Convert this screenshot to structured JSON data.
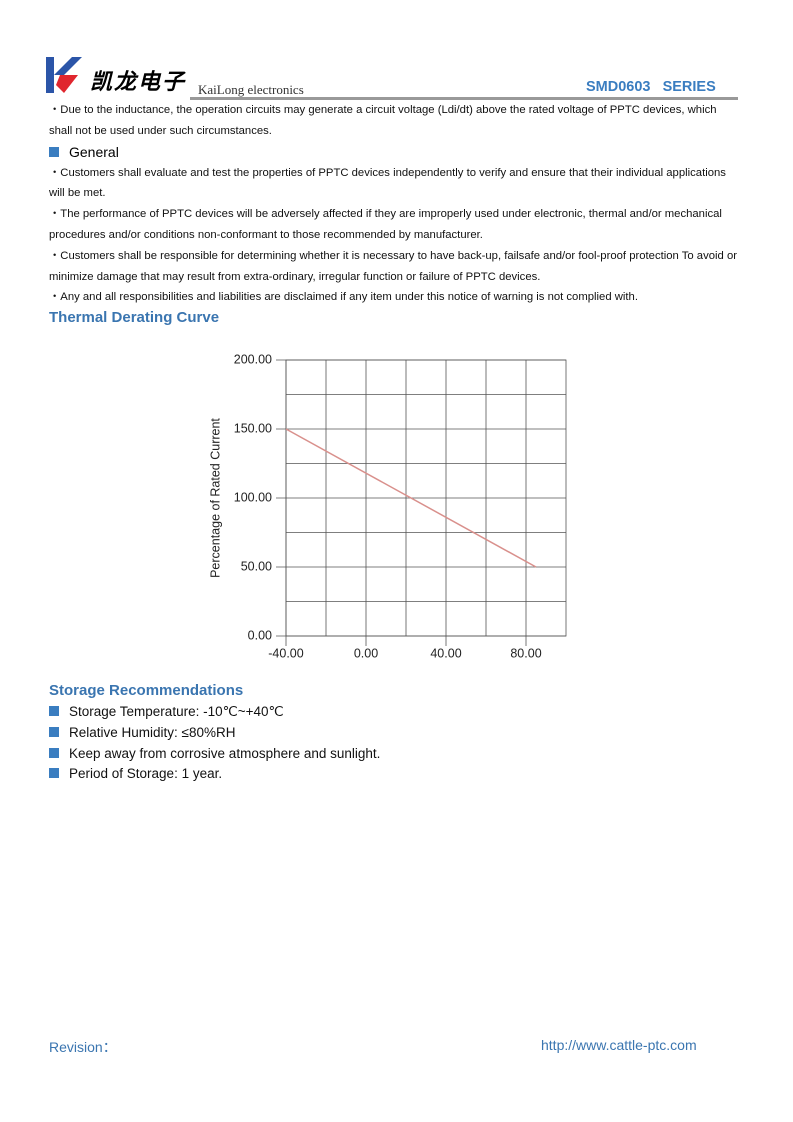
{
  "header": {
    "brand_cn": "凯龙电子",
    "brand_en": "KaiLong electronics",
    "series": "SMD0603   SERIES"
  },
  "notes": [
    "・Due to the inductance, the operation circuits may generate a circuit voltage (Ldi/dt) above the rated voltage of PPTC devices, which shall not be used under such circumstances."
  ],
  "general": {
    "heading": "General",
    "items": [
      "・Customers shall evaluate and test the properties of PPTC devices independently to verify and ensure that their individual applications will be met.",
      "・The performance of PPTC devices will be adversely affected if they are improperly used under electronic, thermal and/or mechanical procedures and/or conditions non-conformant to those recommended by manufacturer.",
      "・Customers shall be responsible for determining whether it is necessary to have back-up, failsafe and/or fool-proof protection To avoid or minimize damage that may result from extra-ordinary, irregular function or failure of PPTC devices.",
      "・Any and all responsibilities and liabilities are disclaimed if any item under this notice of warning is not complied with."
    ]
  },
  "thermal_heading": "Thermal Derating Curve",
  "chart_data": {
    "type": "line",
    "y_label": "Percentage of Rated Current",
    "x": [
      -40,
      85
    ],
    "series": [
      {
        "color": "#d9908c",
        "values": [
          150,
          50
        ]
      }
    ],
    "xlim": [
      -40,
      100
    ],
    "ylim": [
      0,
      200
    ],
    "xticks": [
      {
        "value": -40,
        "label": "-40.00"
      },
      {
        "value": 0,
        "label": "0.00"
      },
      {
        "value": 40,
        "label": "40.00"
      },
      {
        "value": 80,
        "label": "80.00"
      }
    ],
    "yticks": [
      {
        "value": 0,
        "label": "0.00"
      },
      {
        "value": 50,
        "label": "50.00"
      },
      {
        "value": 100,
        "label": "100.00"
      },
      {
        "value": 150,
        "label": "150.00"
      },
      {
        "value": 200,
        "label": "200.00"
      }
    ],
    "grid": true
  },
  "storage": {
    "heading": "Storage Recommendations",
    "items": [
      "Storage Temperature: -10℃~+40℃",
      "Relative Humidity: ≤80%RH",
      "Keep away from corrosive atmosphere and sunlight.",
      "Period of Storage: 1 year."
    ]
  },
  "footer": {
    "revision": "Revision：",
    "url": "http://www.cattle-ptc.com"
  }
}
